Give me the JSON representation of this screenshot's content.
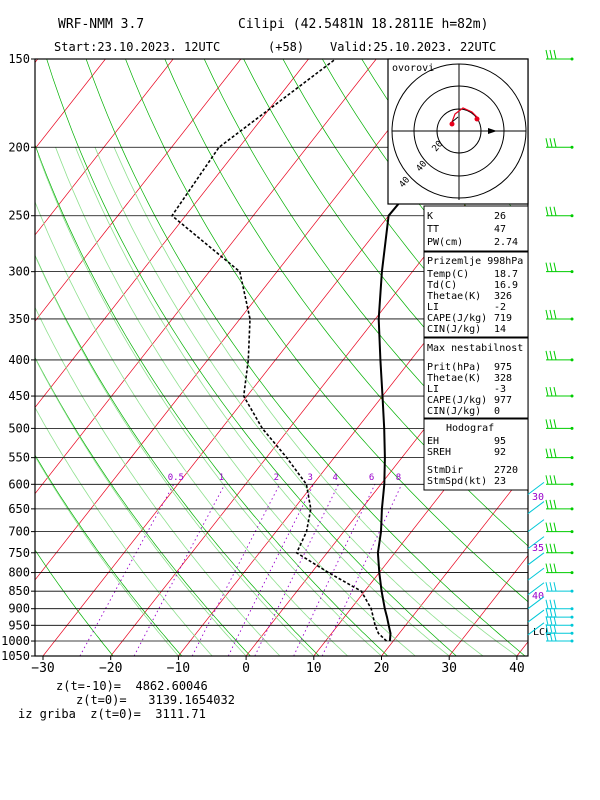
{
  "header": {
    "model": "WRF-NMM 3.7",
    "station": "Cilipi (42.5481N 18.2811E   h=82m)",
    "start": "Start:23.10.2023.   12UTC",
    "offset": "(+58)",
    "valid": "Valid:25.10.2023.   22UTC"
  },
  "chart_data": {
    "type": "skew-t",
    "pressure_levels": [
      150,
      200,
      250,
      300,
      350,
      400,
      450,
      500,
      550,
      600,
      650,
      700,
      750,
      800,
      850,
      900,
      950,
      1000,
      1050
    ],
    "pressure_tick_labels": [
      "150",
      "200",
      "250",
      "300",
      "350",
      "400",
      "450",
      "500",
      "550",
      "600",
      "650",
      "700",
      "750",
      "800",
      "850",
      "900",
      "950",
      "1000",
      "1050"
    ],
    "temp_range": [
      -30,
      40
    ],
    "temp_tick_labels": [
      "−30",
      "−20",
      "−10",
      "0",
      "10",
      "20",
      "30",
      "40"
    ],
    "temperature_profile": [
      [
        1000,
        19.5
      ],
      [
        975,
        18.7
      ],
      [
        950,
        17.5
      ],
      [
        925,
        16.3
      ],
      [
        900,
        15.0
      ],
      [
        850,
        12.5
      ],
      [
        800,
        10.0
      ],
      [
        750,
        7.5
      ],
      [
        700,
        5.5
      ],
      [
        650,
        3.0
      ],
      [
        600,
        0.5
      ],
      [
        550,
        -2.5
      ],
      [
        500,
        -6.0
      ],
      [
        450,
        -10.0
      ],
      [
        400,
        -14.5
      ],
      [
        350,
        -19.5
      ],
      [
        300,
        -24.5
      ],
      [
        250,
        -30.0
      ],
      [
        200,
        -29.5
      ],
      [
        150,
        -26.5
      ]
    ],
    "dewpoint_profile": [
      [
        1000,
        19.0
      ],
      [
        975,
        16.9
      ],
      [
        950,
        15.5
      ],
      [
        900,
        13.0
      ],
      [
        850,
        9.5
      ],
      [
        800,
        2.5
      ],
      [
        750,
        -4.5
      ],
      [
        700,
        -5.5
      ],
      [
        650,
        -7.5
      ],
      [
        600,
        -11.0
      ],
      [
        550,
        -17.0
      ],
      [
        500,
        -24.0
      ],
      [
        450,
        -30.5
      ],
      [
        400,
        -34.0
      ],
      [
        350,
        -38.5
      ],
      [
        300,
        -45.5
      ],
      [
        250,
        -62.0
      ],
      [
        200,
        -63.0
      ],
      [
        150,
        -56.0
      ]
    ],
    "mixing_ratio_labels": [
      "0.5",
      "1",
      "2",
      "3",
      "4",
      "6",
      "8"
    ],
    "mixing_ratio_values": [
      0.5,
      1,
      2,
      3,
      4,
      6,
      8
    ],
    "right_scale_labels": [
      "30",
      "35",
      "40"
    ],
    "lcl_label": "LCL",
    "hodograph_title": "ovorovi",
    "hodograph_ring_labels": [
      "20",
      "40"
    ]
  },
  "indices_box": {
    "rows": [
      {
        "label": "K",
        "value": "26"
      },
      {
        "label": "TT",
        "value": "47"
      },
      {
        "label": "PW(cm)",
        "value": "2.74"
      }
    ]
  },
  "surface_box": {
    "title": "Prizemlje 998hPa",
    "rows": [
      {
        "label": "Temp(C)",
        "value": "18.7"
      },
      {
        "label": "Td(C)",
        "value": "16.9"
      },
      {
        "label": "Thetae(K)",
        "value": "326"
      },
      {
        "label": "LI",
        "value": "-2"
      },
      {
        "label": "CAPE(J/kg)",
        "value": "719"
      },
      {
        "label": "CIN(J/kg)",
        "value": "14"
      }
    ]
  },
  "max_box": {
    "title": "Max nestabilnost",
    "rows": [
      {
        "label": "Prit(hPa)",
        "value": "975"
      },
      {
        "label": "Thetae(K)",
        "value": "328"
      },
      {
        "label": "LI",
        "value": "-3"
      },
      {
        "label": "CAPE(J/kg)",
        "value": "977"
      },
      {
        "label": "CIN(J/kg)",
        "value": "0"
      }
    ]
  },
  "hodo_box": {
    "title": "Hodograf",
    "rows": [
      {
        "label": "EH",
        "value": "95"
      },
      {
        "label": "SREH",
        "value": "92"
      },
      {
        "label": "StmDir",
        "value": "2720"
      },
      {
        "label": "StmSpd(kt)",
        "value": "23"
      }
    ]
  },
  "footer": {
    "line1": "z(t=-10)=  4862.60046",
    "line2": "z(t=0)=   3139.1654032",
    "line3": "iz griba  z(t=0)=  3111.71"
  },
  "colors": {
    "isotherm": "#e8001c",
    "dry_adiabat": "#00b000",
    "moist_adiabat": "#8fe08f",
    "mixing_ratio": "#9900cc",
    "wind": "#00cc00",
    "cyan": "#00c8d8",
    "profile": "#000000"
  }
}
